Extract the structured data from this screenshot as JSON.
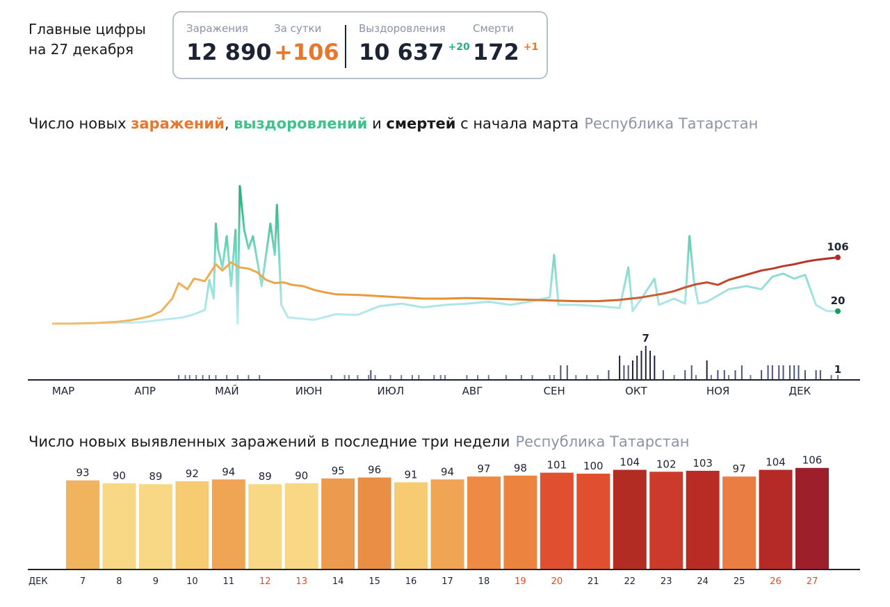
{
  "header": {
    "title_line1": "Главные цифры",
    "title_line2": "на 27 декабря"
  },
  "stats": {
    "infections_label": "Заражения",
    "infections_value": "12 890",
    "daily_label": "За сутки",
    "daily_value": "+106",
    "recoveries_label": "Выздоровления",
    "recoveries_value": "10 637",
    "recoveries_delta": "+20",
    "deaths_label": "Смерти",
    "deaths_value": "172",
    "deaths_delta": "+1"
  },
  "colors": {
    "infections": "#e8762d",
    "recoveries": "#3cc48a",
    "deaths": "#1c2333",
    "region": "#8a94a6",
    "weekend": "#e04a2c"
  },
  "section1": {
    "prefix": "Число новых ",
    "infections_word": "заражений",
    "sep1": ", ",
    "recoveries_word": "выздоровлений",
    "sep2": " и ",
    "deaths_word": "смертей",
    "suffix": " с начала марта",
    "region": "Республика Татарстан"
  },
  "section2": {
    "title": "Число новых выявленных заражений в последние три недели",
    "region": "Республика Татарстан"
  },
  "chart_data": [
    {
      "type": "line",
      "months": [
        "МАР",
        "АПР",
        "МАЙ",
        "ИЮН",
        "ИЮЛ",
        "АВГ",
        "СЕН",
        "ОКТ",
        "НОЯ",
        "ДЕК"
      ],
      "series": [
        {
          "name": "заражений",
          "color": "#e8762d",
          "points": [
            [
              0,
              0
            ],
            [
              10,
              0
            ],
            [
              20,
              1
            ],
            [
              25,
              2
            ],
            [
              30,
              3
            ],
            [
              35,
              5
            ],
            [
              40,
              8
            ],
            [
              45,
              12
            ],
            [
              50,
              20
            ],
            [
              55,
              40
            ],
            [
              58,
              65
            ],
            [
              62,
              55
            ],
            [
              65,
              72
            ],
            [
              70,
              68
            ],
            [
              75,
              95
            ],
            [
              78,
              85
            ],
            [
              82,
              98
            ],
            [
              86,
              90
            ],
            [
              90,
              88
            ],
            [
              94,
              82
            ],
            [
              98,
              70
            ],
            [
              102,
              65
            ],
            [
              106,
              66
            ],
            [
              110,
              62
            ],
            [
              115,
              60
            ],
            [
              120,
              54
            ],
            [
              125,
              50
            ],
            [
              130,
              47
            ],
            [
              140,
              46
            ],
            [
              150,
              44
            ],
            [
              160,
              42
            ],
            [
              170,
              40
            ],
            [
              180,
              40
            ],
            [
              190,
              41
            ],
            [
              200,
              40
            ],
            [
              210,
              39
            ],
            [
              220,
              38
            ],
            [
              230,
              37
            ],
            [
              240,
              36
            ],
            [
              250,
              36
            ],
            [
              260,
              38
            ],
            [
              270,
              42
            ],
            [
              280,
              48
            ],
            [
              285,
              52
            ],
            [
              290,
              58
            ],
            [
              295,
              63
            ],
            [
              300,
              66
            ],
            [
              305,
              62
            ],
            [
              310,
              70
            ],
            [
              315,
              75
            ],
            [
              320,
              80
            ],
            [
              325,
              85
            ],
            [
              330,
              88
            ],
            [
              335,
              92
            ],
            [
              340,
              95
            ],
            [
              345,
              99
            ],
            [
              350,
              102
            ],
            [
              355,
              104
            ],
            [
              360,
              106
            ]
          ],
          "last_label": "106"
        },
        {
          "name": "выздоровлений",
          "color": "#3cc48a",
          "points": [
            [
              0,
              0
            ],
            [
              40,
              2
            ],
            [
              50,
              6
            ],
            [
              60,
              10
            ],
            [
              65,
              15
            ],
            [
              70,
              22
            ],
            [
              72,
              70
            ],
            [
              74,
              40
            ],
            [
              75,
              160
            ],
            [
              76,
              120
            ],
            [
              78,
              90
            ],
            [
              80,
              140
            ],
            [
              82,
              60
            ],
            [
              84,
              150
            ],
            [
              85,
              0
            ],
            [
              86,
              220
            ],
            [
              88,
              150
            ],
            [
              90,
              120
            ],
            [
              92,
              140
            ],
            [
              94,
              100
            ],
            [
              96,
              60
            ],
            [
              100,
              160
            ],
            [
              102,
              110
            ],
            [
              103,
              190
            ],
            [
              105,
              30
            ],
            [
              108,
              10
            ],
            [
              120,
              6
            ],
            [
              130,
              15
            ],
            [
              140,
              14
            ],
            [
              150,
              28
            ],
            [
              160,
              32
            ],
            [
              170,
              26
            ],
            [
              180,
              30
            ],
            [
              190,
              32
            ],
            [
              200,
              35
            ],
            [
              210,
              30
            ],
            [
              220,
              36
            ],
            [
              228,
              42
            ],
            [
              230,
              110
            ],
            [
              232,
              30
            ],
            [
              240,
              30
            ],
            [
              250,
              28
            ],
            [
              260,
              25
            ],
            [
              264,
              90
            ],
            [
              266,
              20
            ],
            [
              270,
              40
            ],
            [
              276,
              72
            ],
            [
              278,
              30
            ],
            [
              285,
              40
            ],
            [
              290,
              32
            ],
            [
              292,
              140
            ],
            [
              294,
              70
            ],
            [
              296,
              32
            ],
            [
              300,
              35
            ],
            [
              305,
              45
            ],
            [
              310,
              55
            ],
            [
              318,
              60
            ],
            [
              325,
              55
            ],
            [
              330,
              75
            ],
            [
              335,
              80
            ],
            [
              340,
              72
            ],
            [
              345,
              78
            ],
            [
              350,
              30
            ],
            [
              355,
              20
            ],
            [
              360,
              20
            ]
          ],
          "last_label": "20"
        },
        {
          "name": "смертей",
          "color": "#1c2333",
          "days": [
            58,
            61,
            63,
            66,
            69,
            72,
            75,
            80,
            85,
            90,
            95,
            128,
            134,
            136,
            140,
            145,
            146,
            148,
            155,
            160,
            165,
            168,
            175,
            178,
            180,
            190,
            195,
            200,
            208,
            215,
            220,
            228,
            230,
            233,
            236,
            240,
            245,
            250,
            255,
            260,
            262,
            264,
            266,
            268,
            270,
            272,
            274,
            276,
            280,
            285,
            290,
            293,
            295,
            300,
            302,
            305,
            308,
            310,
            313,
            316,
            320,
            325,
            328,
            330,
            333,
            335,
            338,
            340,
            342,
            345,
            350,
            352,
            357,
            360
          ],
          "values": [
            1,
            1,
            1,
            1,
            1,
            1,
            1,
            1,
            1,
            1,
            1,
            1,
            1,
            1,
            1,
            1,
            2,
            1,
            1,
            1,
            1,
            1,
            1,
            1,
            1,
            1,
            1,
            1,
            1,
            1,
            1,
            1,
            1,
            3,
            3,
            1,
            1,
            1,
            2,
            5,
            3,
            3,
            4,
            5,
            6,
            7,
            6,
            5,
            2,
            1,
            2,
            3,
            1,
            4,
            1,
            2,
            2,
            1,
            2,
            3,
            1,
            2,
            3,
            3,
            3,
            3,
            3,
            3,
            3,
            2,
            2,
            2,
            1,
            1
          ],
          "last_label": "1",
          "peak_label": "7"
        }
      ]
    },
    {
      "type": "bar",
      "month_label": "ДЕК",
      "categories": [
        "7",
        "8",
        "9",
        "10",
        "11",
        "12",
        "13",
        "14",
        "15",
        "16",
        "17",
        "18",
        "19",
        "20",
        "21",
        "22",
        "23",
        "24",
        "25",
        "26",
        "27"
      ],
      "values": [
        93,
        90,
        89,
        92,
        94,
        89,
        90,
        95,
        96,
        91,
        94,
        97,
        98,
        101,
        100,
        104,
        102,
        103,
        97,
        104,
        106
      ],
      "weekend": [
        false,
        false,
        false,
        false,
        false,
        true,
        true,
        false,
        false,
        false,
        false,
        false,
        true,
        true,
        false,
        false,
        false,
        false,
        false,
        true,
        true
      ],
      "bar_colors": [
        "#f0b35e",
        "#f8d884",
        "#f8d884",
        "#f6cb72",
        "#f0a554",
        "#f8d884",
        "#f8d884",
        "#ec9a4e",
        "#ea8e46",
        "#f6cb72",
        "#f0a554",
        "#ee8a44",
        "#ec8440",
        "#e05030",
        "#e05030",
        "#b32c24",
        "#cc3a2c",
        "#b92c26",
        "#ea7e42",
        "#b52a26",
        "#9e1f2c"
      ],
      "ylim": [
        0,
        110
      ]
    }
  ]
}
